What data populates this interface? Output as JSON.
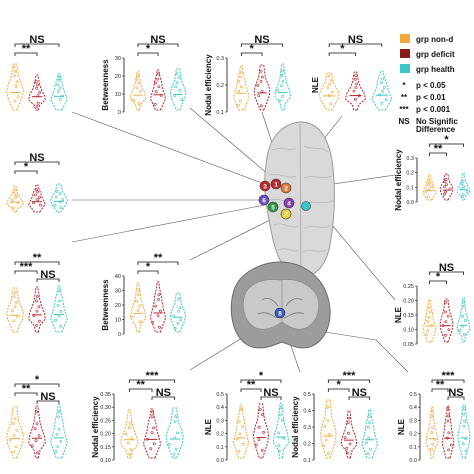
{
  "colors": {
    "non": "#f2a93b",
    "def": "#b5242e",
    "hea": "#3cc6c6",
    "line": "#111111"
  },
  "legend": {
    "items": [
      {
        "label": "grp non-d",
        "color": "#f2a93b"
      },
      {
        "label": "grp deficit",
        "color": "#8b1a1a"
      },
      {
        "label": "grp health",
        "color": "#3cc6c6"
      }
    ],
    "sig": [
      {
        "sym": "*",
        "text": "p < 0.05"
      },
      {
        "sym": "**",
        "text": "p < 0.01"
      },
      {
        "sym": "***",
        "text": "p < 0.001"
      },
      {
        "sym": "NS",
        "text": "No Signific"
      }
    ],
    "ns_extra": "Difference"
  },
  "brain_nodes": [
    "3",
    "1",
    "2",
    "6",
    "5",
    "4",
    "7",
    "8"
  ],
  "chart_data": [
    {
      "id": "a",
      "type": "violin",
      "ylabel": "",
      "yticks": [],
      "s1": "**",
      "s2": "NS"
    },
    {
      "id": "b",
      "type": "violin",
      "ylabel": "Betweenness",
      "yticks": [
        "30",
        "20",
        "10",
        "0"
      ],
      "s1": "*",
      "s2": "NS"
    },
    {
      "id": "c",
      "type": "violin",
      "ylabel": "Nodal efficiency",
      "yticks": [
        "0.3",
        "0.2",
        "0.1"
      ],
      "s1": "*",
      "s2": "NS"
    },
    {
      "id": "d",
      "type": "violin",
      "ylabel": "NLE",
      "yticks": [],
      "s1": "*",
      "s2": "NS"
    },
    {
      "id": "e",
      "type": "violin",
      "ylabel": "",
      "yticks": [],
      "s1": "*",
      "s2": "NS"
    },
    {
      "id": "f",
      "type": "violin",
      "ylabel": "Nodal efficiency",
      "yticks": [
        "0.3",
        "0.2",
        "0.1",
        "0.0"
      ],
      "s1": "**",
      "s2": "*"
    },
    {
      "id": "g",
      "type": "violin",
      "ylabel": "",
      "yticks": [],
      "s1": "***",
      "s2": "**",
      "s3": "NS"
    },
    {
      "id": "h",
      "type": "violin",
      "ylabel": "Betweenness",
      "yticks": [
        "40",
        "30",
        "20",
        "10",
        "0"
      ],
      "s1": "*",
      "s2": "**"
    },
    {
      "id": "i",
      "type": "violin",
      "ylabel": "NLE",
      "yticks": [
        "0.25",
        "0.20",
        "0.15",
        "0.10",
        "0.05"
      ],
      "s1": "*",
      "s2": "NS"
    },
    {
      "id": "j",
      "type": "violin",
      "ylabel": "",
      "yticks": [],
      "s1": "**",
      "s2": "*",
      "s3": "NS"
    },
    {
      "id": "k",
      "type": "violin",
      "ylabel": "Nodal efficiency",
      "yticks": [
        "0.35",
        "0.30",
        "0.25",
        "0.20",
        "0.15",
        "0.10"
      ],
      "s1": "**",
      "s2": "***",
      "s3": "NS"
    },
    {
      "id": "l",
      "type": "violin",
      "ylabel": "NLE",
      "yticks": [
        "0.5",
        "0.4",
        "0.3",
        "0.2",
        "0.1",
        "0.0"
      ],
      "s1": "**",
      "s2": "*",
      "s3": "NS"
    },
    {
      "id": "m",
      "type": "violin",
      "ylabel": "Nodal efficiency",
      "yticks": [
        "0.5",
        "0.4",
        "0.3",
        "0.2",
        "0.1"
      ],
      "s1": "*",
      "s2": "***",
      "s3": "NS"
    },
    {
      "id": "n",
      "type": "violin",
      "ylabel": "NLE",
      "yticks": [
        "0.5",
        "0.4",
        "0.3",
        "0.2",
        "0.1",
        "0.0"
      ],
      "s1": "**",
      "s2": "***",
      "s3": "NS"
    }
  ]
}
